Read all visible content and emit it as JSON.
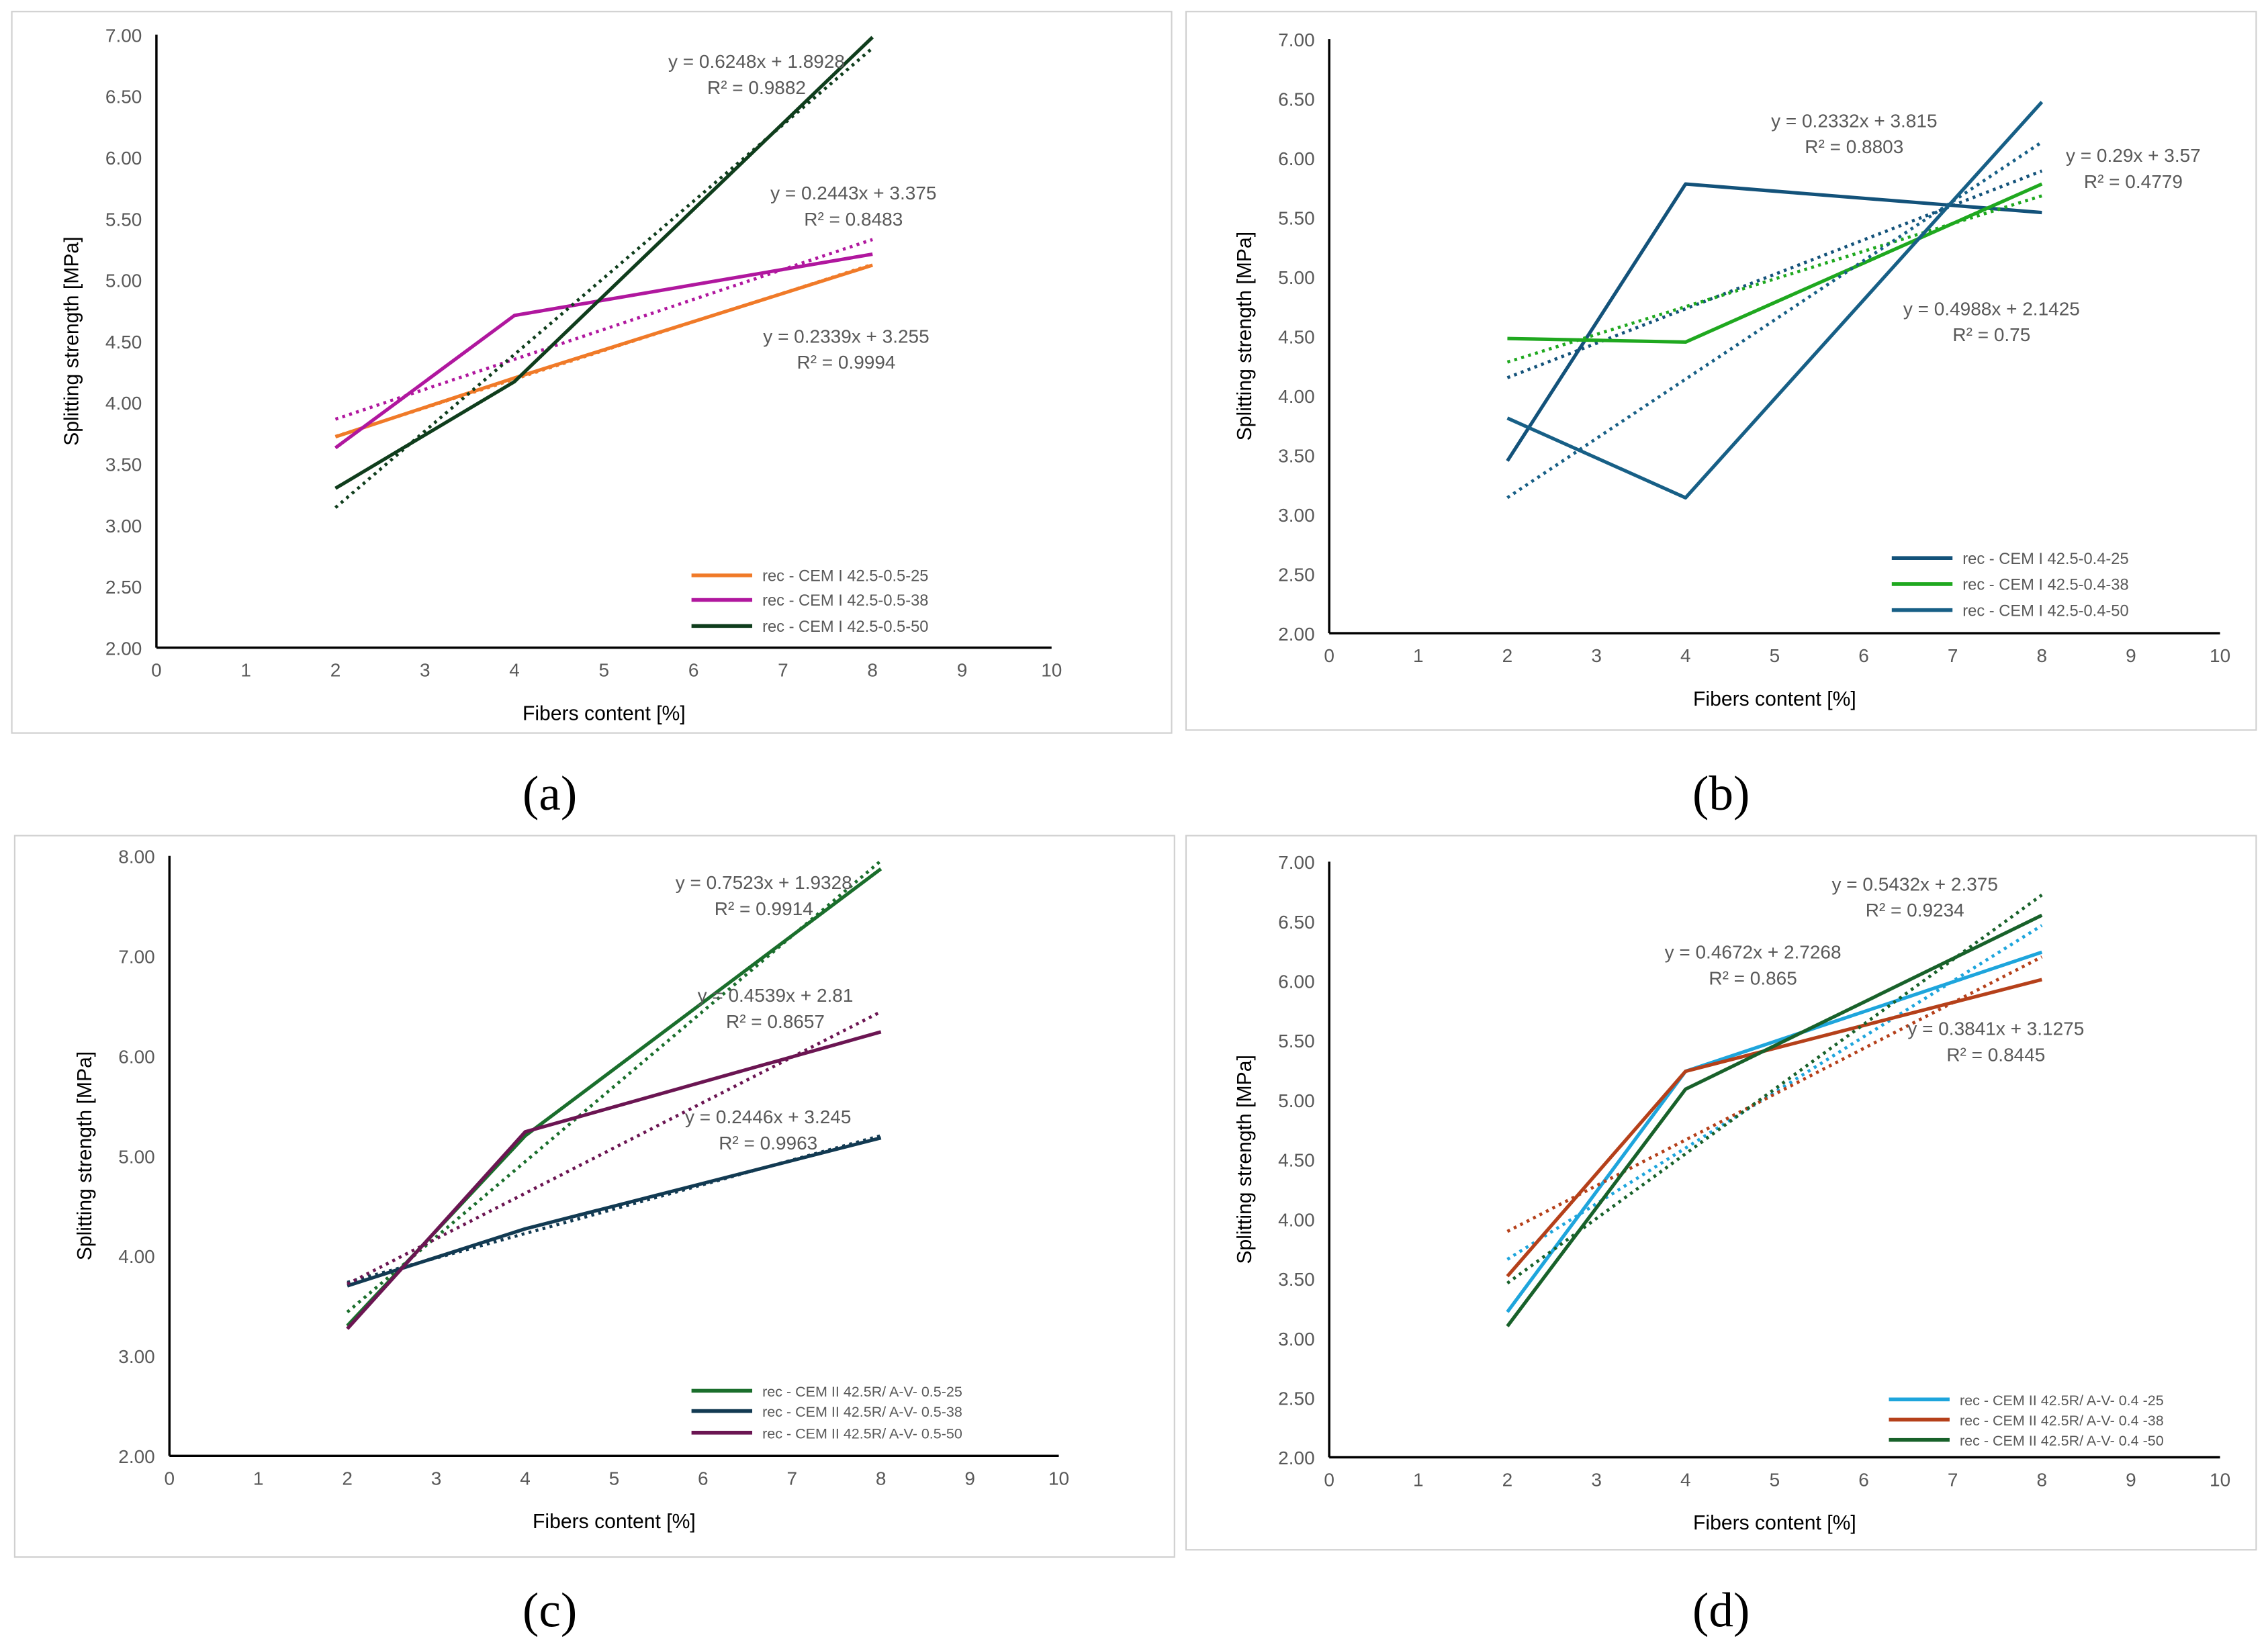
{
  "chart_data": [
    {
      "panel_label": "(a)",
      "type": "line",
      "xlabel": "Fibers content [%]",
      "ylabel": "Splitting strength [MPa]",
      "xlim": [
        0,
        10
      ],
      "ylim": [
        2,
        7
      ],
      "ystep": 0.5,
      "xstep": 1,
      "legend_position": "bottom-right",
      "series": [
        {
          "name": "rec - CEM I 42.5-0.5-25",
          "color": "#f07a28",
          "x": [
            2,
            4,
            8
          ],
          "y": [
            3.72,
            4.2,
            5.12
          ],
          "trend": {
            "slope": 0.2339,
            "intercept": 3.255,
            "equation": "y = 0.2339x + 3.255",
            "r2": "R² = 0.9994"
          }
        },
        {
          "name": "rec - CEM I 42.5-0.5-38",
          "color": "#b0179e",
          "x": [
            2,
            4,
            8
          ],
          "y": [
            3.63,
            4.71,
            5.21
          ],
          "trend": {
            "slope": 0.2443,
            "intercept": 3.375,
            "equation": "y = 0.2443x + 3.375",
            "r2": "R² = 0.8483"
          }
        },
        {
          "name": "rec - CEM I 42.5-0.5-50",
          "color": "#0f3d1c",
          "x": [
            2,
            4,
            8
          ],
          "y": [
            3.3,
            4.17,
            6.98
          ],
          "trend": {
            "slope": 0.6248,
            "intercept": 1.8928,
            "equation": "y = 0.6248x + 1.8928",
            "r2": "R² = 0.9882"
          }
        }
      ]
    },
    {
      "panel_label": "(b)",
      "type": "line",
      "xlabel": "Fibers content [%]",
      "ylabel": "Splitting strength [MPa]",
      "xlim": [
        0,
        10
      ],
      "ylim": [
        2,
        7
      ],
      "ystep": 0.5,
      "xstep": 1,
      "legend_position": "bottom-right",
      "series": [
        {
          "name": "rec - CEM I 42.5-0.4-25",
          "color": "#13527a",
          "x": [
            2,
            4,
            8
          ],
          "y": [
            3.45,
            5.78,
            5.54
          ],
          "trend": {
            "slope": 0.29,
            "intercept": 3.57,
            "equation": "y = 0.29x + 3.57",
            "r2": "R² = 0.4779"
          }
        },
        {
          "name": "rec - CEM I 42.5-0.4-38",
          "color": "#1fa81f",
          "x": [
            2,
            4,
            8
          ],
          "y": [
            4.48,
            4.45,
            5.78
          ],
          "trend": {
            "slope": 0.2332,
            "intercept": 3.815,
            "equation": "y = 0.2332x + 3.815",
            "r2": "R² = 0.8803"
          }
        },
        {
          "name": "rec - CEM I 42.5-0.4-50",
          "color": "#175f86",
          "x": [
            2,
            4,
            8
          ],
          "y": [
            3.81,
            3.14,
            6.47
          ],
          "trend": {
            "slope": 0.4988,
            "intercept": 2.1425,
            "equation": "y = 0.4988x + 2.1425",
            "r2": "R² = 0.75"
          }
        }
      ]
    },
    {
      "panel_label": "(c)",
      "type": "line",
      "xlabel": "Fibers content [%]",
      "ylabel": "Splitting strength [MPa]",
      "xlim": [
        0,
        10
      ],
      "ylim": [
        2,
        8
      ],
      "ystep": 1,
      "xstep": 1,
      "legend_position": "bottom-right",
      "series": [
        {
          "name": "rec - CEM II 42.5R/ A-V- 0.5-25",
          "color": "#1a6e2c",
          "x": [
            2,
            4,
            8
          ],
          "y": [
            3.3,
            5.2,
            7.87
          ],
          "trend": {
            "slope": 0.7523,
            "intercept": 1.9328,
            "equation": "y = 0.7523x + 1.9328",
            "r2": "R² = 0.9914"
          }
        },
        {
          "name": "rec - CEM II 42.5R/ A-V- 0.5-38",
          "color": "#123a52",
          "x": [
            2,
            4,
            8
          ],
          "y": [
            3.7,
            4.27,
            5.18
          ],
          "trend": {
            "slope": 0.2446,
            "intercept": 3.245,
            "equation": "y = 0.2446x + 3.245",
            "r2": "R² = 0.9963"
          }
        },
        {
          "name": "rec - CEM II 42.5R/ A-V- 0.5-50",
          "color": "#6b1552",
          "x": [
            2,
            4,
            8
          ],
          "y": [
            3.27,
            5.24,
            6.24
          ],
          "trend": {
            "slope": 0.4539,
            "intercept": 2.81,
            "equation": "y = 0.4539x + 2.81",
            "r2": "R² = 0.8657"
          }
        }
      ]
    },
    {
      "panel_label": "(d)",
      "type": "line",
      "xlabel": "Fibers content [%]",
      "ylabel": "Splitting strength [MPa]",
      "xlim": [
        0,
        10
      ],
      "ylim": [
        2,
        7
      ],
      "ystep": 0.5,
      "xstep": 1,
      "legend_position": "bottom-right",
      "series": [
        {
          "name": "rec - CEM II 42.5R/ A-V- 0.4 -25",
          "color": "#1ea5dc",
          "x": [
            2,
            4,
            8
          ],
          "y": [
            3.22,
            5.24,
            6.24
          ],
          "trend": {
            "slope": 0.4672,
            "intercept": 2.7268,
            "equation": "y = 0.4672x + 2.7268",
            "r2": "R² = 0.865"
          }
        },
        {
          "name": "rec - CEM II 42.5R/ A-V- 0.4 -38",
          "color": "#b5401a",
          "x": [
            2,
            4,
            8
          ],
          "y": [
            3.52,
            5.24,
            6.01
          ],
          "trend": {
            "slope": 0.3841,
            "intercept": 3.1275,
            "equation": "y = 0.3841x + 3.1275",
            "r2": "R² = 0.8445"
          }
        },
        {
          "name": "rec - CEM II 42.5R/ A-V- 0.4 -50",
          "color": "#18612a",
          "x": [
            2,
            4,
            8
          ],
          "y": [
            3.1,
            5.09,
            6.55
          ],
          "trend": {
            "slope": 0.5432,
            "intercept": 2.375,
            "equation": "y = 0.5432x + 2.375",
            "r2": "R² = 0.9234"
          }
        }
      ]
    }
  ]
}
